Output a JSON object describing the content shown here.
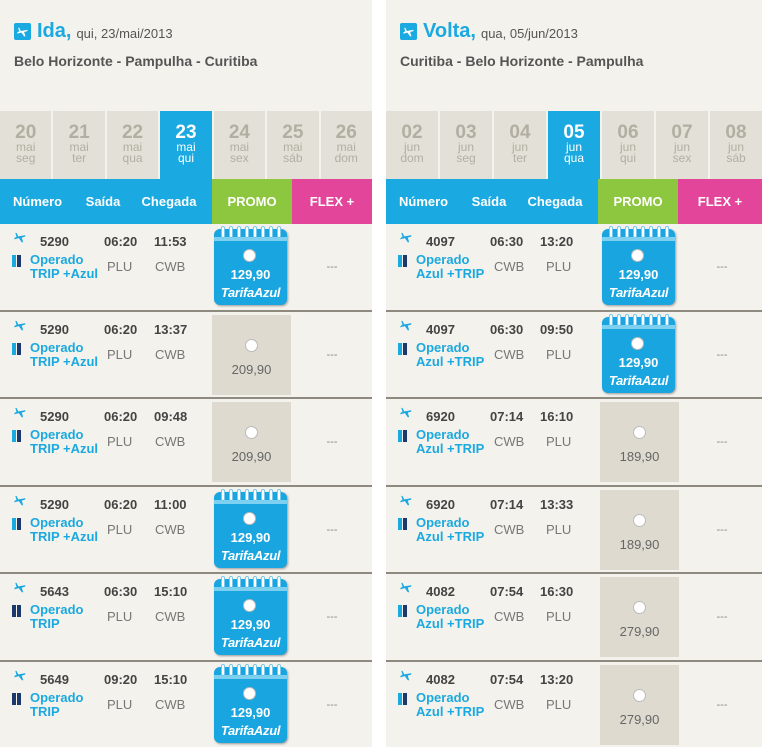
{
  "ida": {
    "direction": "Ida,",
    "date": "qui, 23/mai/2013",
    "route": "Belo Horizonte - Pampulha - Curitiba",
    "days": [
      {
        "day": "20",
        "month": "mai",
        "weekday": "seg",
        "selected": false
      },
      {
        "day": "21",
        "month": "mai",
        "weekday": "ter",
        "selected": false
      },
      {
        "day": "22",
        "month": "mai",
        "weekday": "qua",
        "selected": false
      },
      {
        "day": "23",
        "month": "mai",
        "weekday": "qui",
        "selected": true
      },
      {
        "day": "24",
        "month": "mai",
        "weekday": "sex",
        "selected": false
      },
      {
        "day": "25",
        "month": "mai",
        "weekday": "sáb",
        "selected": false
      },
      {
        "day": "26",
        "month": "mai",
        "weekday": "dom",
        "selected": false
      }
    ],
    "columns": {
      "number": "Número",
      "departure": "Saída",
      "arrival": "Chegada",
      "promo": "PROMO",
      "flex": "FLEX +"
    },
    "flights": [
      {
        "number": "5290",
        "departure": "06:20",
        "arrival": "11:53",
        "op_line1": "Operado",
        "op_line2": "TRIP +Azul",
        "from": "PLU",
        "to": "CWB",
        "promo_price": "129,90",
        "tarifa_azul": true,
        "flex": "---"
      },
      {
        "number": "5290",
        "departure": "06:20",
        "arrival": "13:37",
        "op_line1": "Operado",
        "op_line2": "TRIP +Azul",
        "from": "PLU",
        "to": "CWB",
        "promo_price": "209,90",
        "tarifa_azul": false,
        "flex": "---"
      },
      {
        "number": "5290",
        "departure": "06:20",
        "arrival": "09:48",
        "op_line1": "Operado",
        "op_line2": "TRIP +Azul",
        "from": "PLU",
        "to": "CWB",
        "promo_price": "209,90",
        "tarifa_azul": false,
        "flex": "---"
      },
      {
        "number": "5290",
        "departure": "06:20",
        "arrival": "11:00",
        "op_line1": "Operado",
        "op_line2": "TRIP +Azul",
        "from": "PLU",
        "to": "CWB",
        "promo_price": "129,90",
        "tarifa_azul": true,
        "flex": "---"
      },
      {
        "number": "5643",
        "departure": "06:30",
        "arrival": "15:10",
        "op_line1": "Operado",
        "op_line2": "TRIP",
        "from": "PLU",
        "to": "CWB",
        "promo_price": "129,90",
        "tarifa_azul": true,
        "flex": "---"
      },
      {
        "number": "5649",
        "departure": "09:20",
        "arrival": "15:10",
        "op_line1": "Operado",
        "op_line2": "TRIP",
        "from": "PLU",
        "to": "CWB",
        "promo_price": "129,90",
        "tarifa_azul": true,
        "flex": "---"
      }
    ]
  },
  "volta": {
    "direction": "Volta,",
    "date": "qua, 05/jun/2013",
    "route": "Curitiba - Belo Horizonte - Pampulha",
    "days": [
      {
        "day": "02",
        "month": "jun",
        "weekday": "dom",
        "selected": false
      },
      {
        "day": "03",
        "month": "jun",
        "weekday": "seg",
        "selected": false
      },
      {
        "day": "04",
        "month": "jun",
        "weekday": "ter",
        "selected": false
      },
      {
        "day": "05",
        "month": "jun",
        "weekday": "qua",
        "selected": true
      },
      {
        "day": "06",
        "month": "jun",
        "weekday": "qui",
        "selected": false
      },
      {
        "day": "07",
        "month": "jun",
        "weekday": "sex",
        "selected": false
      },
      {
        "day": "08",
        "month": "jun",
        "weekday": "sáb",
        "selected": false
      }
    ],
    "columns": {
      "number": "Número",
      "departure": "Saída",
      "arrival": "Chegada",
      "promo": "PROMO",
      "flex": "FLEX +"
    },
    "flights": [
      {
        "number": "4097",
        "departure": "06:30",
        "arrival": "13:20",
        "op_line1": "Operado",
        "op_line2": "Azul +TRIP",
        "from": "CWB",
        "to": "PLU",
        "promo_price": "129,90",
        "tarifa_azul": true,
        "flex": "---"
      },
      {
        "number": "4097",
        "departure": "06:30",
        "arrival": "09:50",
        "op_line1": "Operado",
        "op_line2": "Azul +TRIP",
        "from": "CWB",
        "to": "PLU",
        "promo_price": "129,90",
        "tarifa_azul": true,
        "flex": "---"
      },
      {
        "number": "6920",
        "departure": "07:14",
        "arrival": "16:10",
        "op_line1": "Operado",
        "op_line2": "Azul +TRIP",
        "from": "CWB",
        "to": "PLU",
        "promo_price": "189,90",
        "tarifa_azul": false,
        "flex": "---"
      },
      {
        "number": "6920",
        "departure": "07:14",
        "arrival": "13:33",
        "op_line1": "Operado",
        "op_line2": "Azul +TRIP",
        "from": "CWB",
        "to": "PLU",
        "promo_price": "189,90",
        "tarifa_azul": false,
        "flex": "---"
      },
      {
        "number": "4082",
        "departure": "07:54",
        "arrival": "16:30",
        "op_line1": "Operado",
        "op_line2": "Azul +TRIP",
        "from": "CWB",
        "to": "PLU",
        "promo_price": "279,90",
        "tarifa_azul": false,
        "flex": "---"
      },
      {
        "number": "4082",
        "departure": "07:54",
        "arrival": "13:20",
        "op_line1": "Operado",
        "op_line2": "Azul +TRIP",
        "from": "CWB",
        "to": "PLU",
        "promo_price": "279,90",
        "tarifa_azul": false,
        "flex": "---"
      }
    ]
  },
  "tarifa_logo": "TarifaAzul",
  "colors": {
    "accent": "#1aa9e0",
    "promo": "#8dc63f",
    "flex": "#e2459a",
    "panel_bg": "#f4f2ec"
  },
  "icons": {
    "plane": "plane-icon",
    "flag": "airline-flag-icon",
    "calendar": "tarifa-azul-calendar-icon"
  }
}
